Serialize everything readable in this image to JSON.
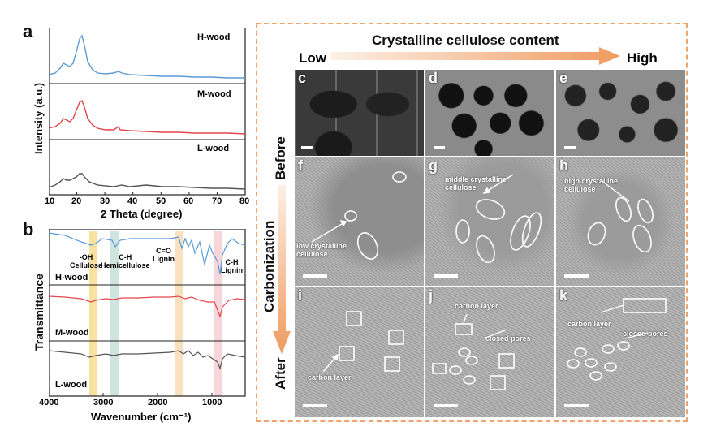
{
  "panel_a": {
    "letter": "a",
    "xlabel": "2 Theta (degree)",
    "ylabel": "Intensity (a.u.)",
    "xticks": [
      "10",
      "20",
      "30",
      "40",
      "50",
      "60",
      "70",
      "80"
    ],
    "traces": [
      {
        "name": "H-wood",
        "color": "#5b9bd5"
      },
      {
        "name": "M-wood",
        "color": "#e0474c"
      },
      {
        "name": "L-wood",
        "color": "#555555"
      }
    ]
  },
  "panel_b": {
    "letter": "b",
    "xlabel": "Wavenumber (cm⁻¹)",
    "ylabel": "Transmittance",
    "xticks": [
      "4000",
      "3000",
      "2000",
      "1000"
    ],
    "bands": [
      {
        "label": "-OH\nCellulose",
        "color": "#f6d47a"
      },
      {
        "label": "C-H\nHemicellulose",
        "color": "#bcd8d2"
      },
      {
        "label": "C=O\nLignin",
        "color": "#f6d4a4"
      },
      {
        "label": "C-H\nLignin",
        "color": "#f3c4cc"
      }
    ],
    "traces": [
      {
        "name": "H-wood",
        "color": "#5b9bd5"
      },
      {
        "name": "M-wood",
        "color": "#e0474c"
      },
      {
        "name": "L-wood",
        "color": "#555555"
      }
    ]
  },
  "right": {
    "header": "Crystalline cellulose content",
    "low": "Low",
    "high": "High",
    "before": "Before",
    "carbonization": "Carbonization",
    "after": "After",
    "panels": [
      {
        "letter": "c"
      },
      {
        "letter": "d"
      },
      {
        "letter": "e"
      },
      {
        "letter": "f",
        "text": "low crystalline\ncellulose"
      },
      {
        "letter": "g",
        "text": "middle crystalline\ncellulose"
      },
      {
        "letter": "h",
        "text": "high crystalline\ncellulose"
      },
      {
        "letter": "i",
        "text": "carbon layer"
      },
      {
        "letter": "j",
        "text": "carbon layer",
        "text2": "closed pores"
      },
      {
        "letter": "k",
        "text": "carbon layer",
        "text2": "closed pores"
      }
    ]
  }
}
